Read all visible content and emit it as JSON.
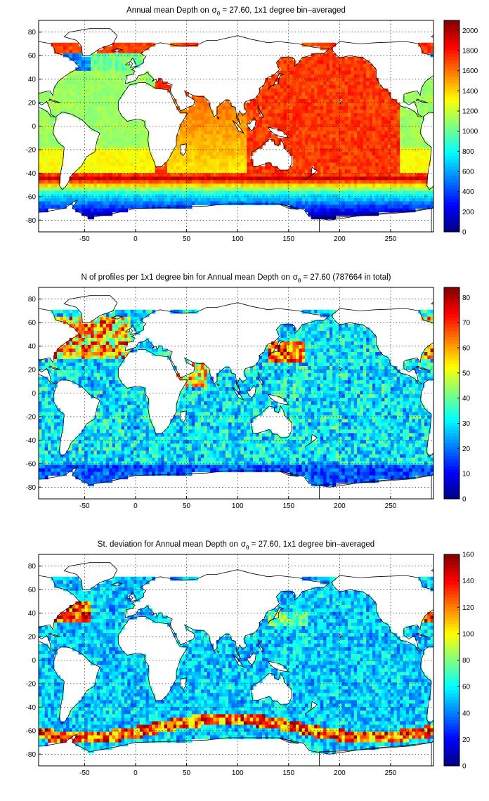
{
  "chart_data": [
    {
      "type": "heatmap",
      "title": {
        "pre": "Annual mean Depth on",
        "sym": "σ",
        "sub": "θ",
        "post": " = 27.60, 1x1 degree bin–averaged"
      },
      "xlabel": "",
      "ylabel": "",
      "xlim": [
        -95,
        292
      ],
      "ylim": [
        -90,
        90
      ],
      "xticks": [
        -50,
        0,
        50,
        100,
        150,
        200,
        250
      ],
      "yticks": [
        80,
        60,
        40,
        20,
        0,
        -20,
        -40,
        -60,
        -80
      ],
      "grid": true,
      "colorbar": {
        "min": 0,
        "max": 2100,
        "ticks": [
          0,
          200,
          400,
          600,
          800,
          1000,
          1200,
          1400,
          1600,
          1800,
          2000
        ],
        "colormap": "jet",
        "placement": "right"
      },
      "field": "depth"
    },
    {
      "type": "heatmap",
      "title": {
        "pre": "N of profiles per 1x1 degree bin for Annual mean Depth on",
        "sym": "σ",
        "sub": "θ",
        "post": " = 27.60 (787664 in total)"
      },
      "xlabel": "",
      "ylabel": "",
      "xlim": [
        -95,
        292
      ],
      "ylim": [
        -90,
        90
      ],
      "xticks": [
        -50,
        0,
        50,
        100,
        150,
        200,
        250
      ],
      "yticks": [
        80,
        60,
        40,
        20,
        0,
        -20,
        -40,
        -60,
        -80
      ],
      "grid": true,
      "colorbar": {
        "min": 0,
        "max": 84,
        "ticks": [
          0,
          10,
          20,
          30,
          40,
          50,
          60,
          70,
          80
        ],
        "colormap": "jet",
        "placement": "right"
      },
      "field": "count"
    },
    {
      "type": "heatmap",
      "title": {
        "pre": "St. deviation for Annual mean Depth on",
        "sym": "σ",
        "sub": "θ",
        "post": " = 27.60, 1x1 degree bin–averaged"
      },
      "xlabel": "",
      "ylabel": "",
      "xlim": [
        -95,
        292
      ],
      "ylim": [
        -90,
        90
      ],
      "xticks": [
        -50,
        0,
        50,
        100,
        150,
        200,
        250
      ],
      "yticks": [
        80,
        60,
        40,
        20,
        0,
        -20,
        -40,
        -60,
        -80
      ],
      "grid": true,
      "colorbar": {
        "min": 0,
        "max": 160,
        "ticks": [
          0,
          20,
          40,
          60,
          80,
          100,
          120,
          140,
          160
        ],
        "colormap": "jet",
        "placement": "right"
      },
      "field": "std"
    }
  ]
}
